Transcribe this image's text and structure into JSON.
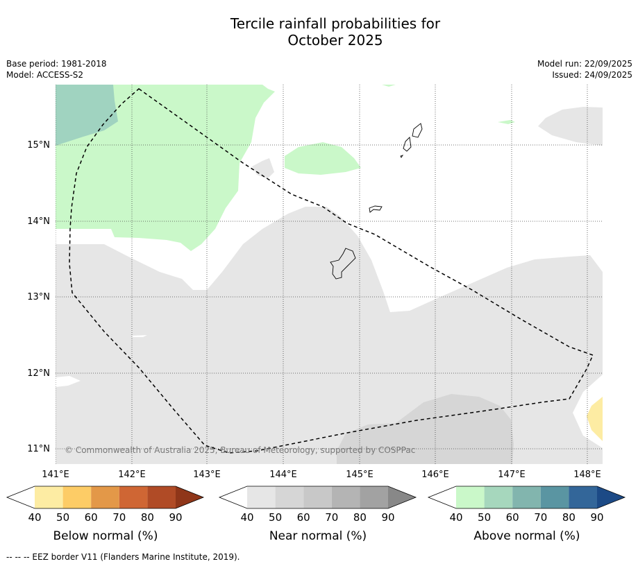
{
  "title_line1": "Tercile rainfall probabilities for",
  "title_line2": "October 2025",
  "meta": {
    "base_period": "Base period: 1981-2018",
    "model": "Model: ACCESS-S2",
    "model_run": "Model run: 22/09/2025",
    "issued": "Issued: 24/09/2025"
  },
  "map": {
    "lon_labels": [
      "141°E",
      "142°E",
      "143°E",
      "144°E",
      "145°E",
      "146°E",
      "147°E",
      "148°E"
    ],
    "lat_labels": [
      "15°N",
      "14°N",
      "13°N",
      "12°N",
      "11°N"
    ],
    "copyright": "© Commonwealth of Australia 2025, Bureau of Meteorology, supported by COSPPac"
  },
  "legends": [
    {
      "name": "below",
      "label": "Below normal (%)",
      "ticks": [
        "40",
        "50",
        "60",
        "70",
        "80",
        "90"
      ],
      "colors": [
        "#ffffff",
        "#fdeca3",
        "#fdcc66",
        "#e39848",
        "#cf6634",
        "#b04b26",
        "#8f3619"
      ]
    },
    {
      "name": "near",
      "label": "Near normal (%)",
      "ticks": [
        "40",
        "50",
        "60",
        "70",
        "80",
        "90"
      ],
      "colors": [
        "#ffffff",
        "#e6e6e6",
        "#d6d6d6",
        "#c8c8c8",
        "#b4b4b4",
        "#a2a2a2",
        "#888888"
      ]
    },
    {
      "name": "above",
      "label": "Above normal (%)",
      "ticks": [
        "40",
        "50",
        "60",
        "70",
        "80",
        "90"
      ],
      "colors": [
        "#ffffff",
        "#caf8c9",
        "#a6d7bd",
        "#82b5ae",
        "#5a95a2",
        "#336699",
        "#1c4a86"
      ]
    }
  ],
  "footnote": "--  --  -- EEZ border V11 (Flanders Marine Institute, 2019)."
}
